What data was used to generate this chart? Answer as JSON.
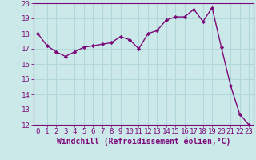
{
  "x": [
    0,
    1,
    2,
    3,
    4,
    5,
    6,
    7,
    8,
    9,
    10,
    11,
    12,
    13,
    14,
    15,
    16,
    17,
    18,
    19,
    20,
    21,
    22,
    23
  ],
  "y": [
    18.0,
    17.2,
    16.8,
    16.5,
    16.8,
    17.1,
    17.2,
    17.3,
    17.4,
    17.8,
    17.6,
    17.0,
    18.0,
    18.2,
    18.9,
    19.1,
    19.1,
    19.6,
    18.8,
    19.7,
    17.1,
    14.6,
    12.7,
    12.0
  ],
  "line_color": "#7b0a7b",
  "marker": "D",
  "marker_size": 2.2,
  "bg_color": "#cce9e9",
  "grid_color": "#b0d8d8",
  "xlabel": "Windchill (Refroidissement éolien,°C)",
  "xlim": [
    -0.5,
    23.5
  ],
  "ylim": [
    12,
    20
  ],
  "yticks": [
    12,
    13,
    14,
    15,
    16,
    17,
    18,
    19,
    20
  ],
  "xticks": [
    0,
    1,
    2,
    3,
    4,
    5,
    6,
    7,
    8,
    9,
    10,
    11,
    12,
    13,
    14,
    15,
    16,
    17,
    18,
    19,
    20,
    21,
    22,
    23
  ],
  "tick_fontsize": 6.5,
  "xlabel_fontsize": 7.0,
  "line_width": 1.0,
  "spine_color": "#7b0a7b",
  "tick_color": "#7b0a7b",
  "label_color": "#7b0a7b"
}
